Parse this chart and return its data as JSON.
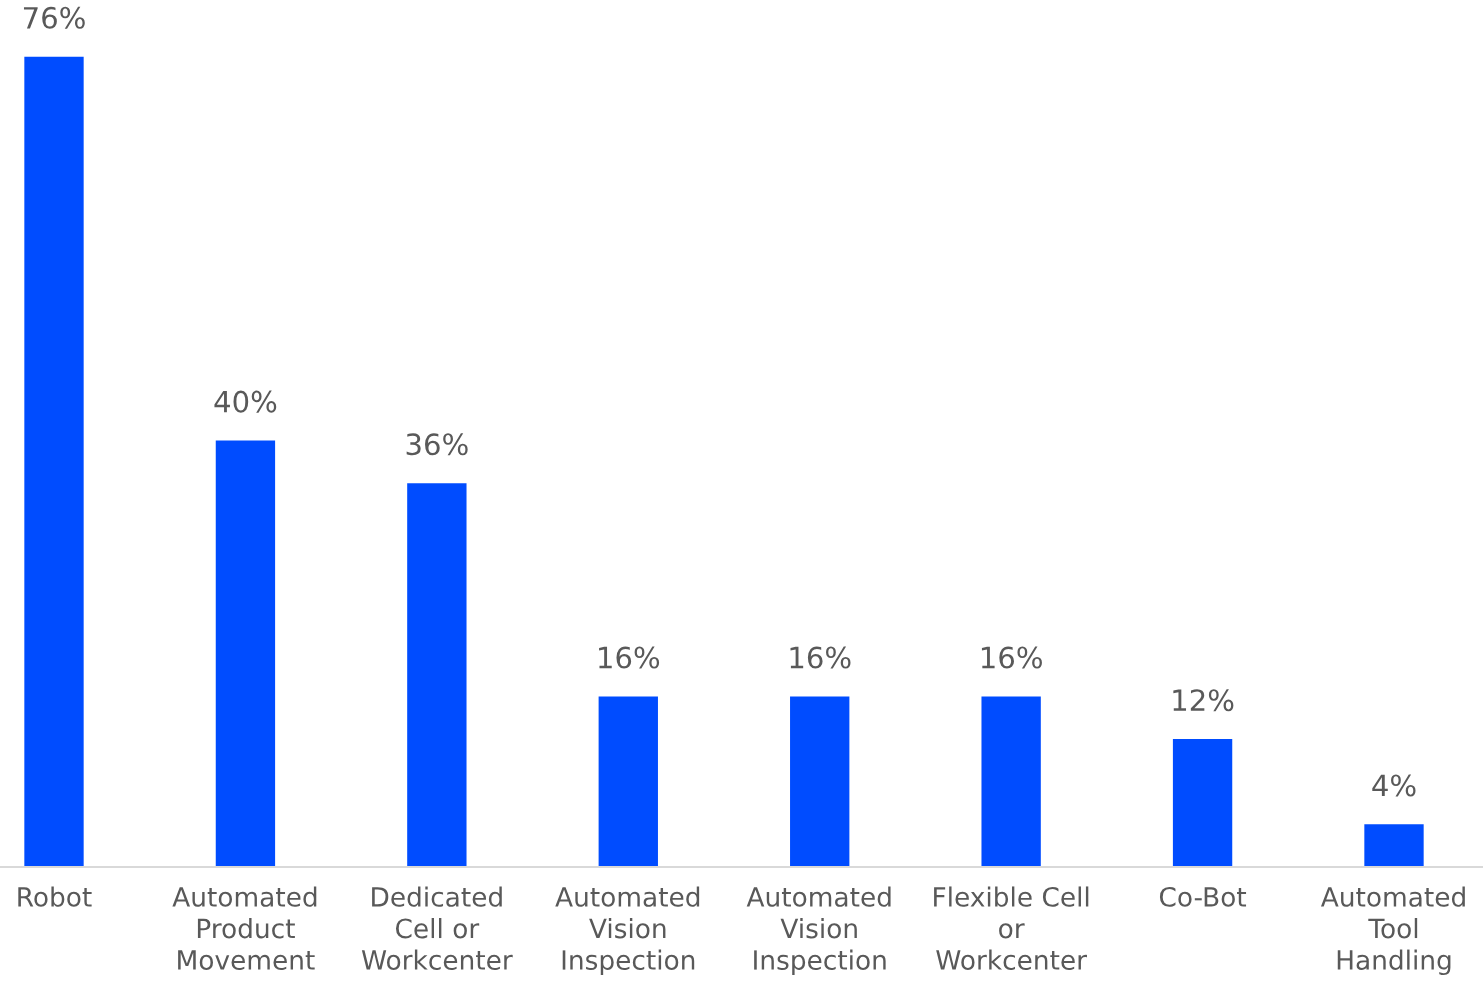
{
  "chart_data": {
    "type": "bar",
    "categories": [
      "Robot",
      "Automated\nProduct\nMovement",
      "Dedicated\nCell or\nWorkcenter",
      "Automated\nVision\nInspection",
      "Automated\nVision\nInspection",
      "Flexible Cell\nor\nWorkcenter",
      "Co-Bot",
      "Automated\nTool\nHandling"
    ],
    "values": [
      76,
      40,
      36,
      16,
      16,
      16,
      12,
      4
    ],
    "value_labels": [
      "76%",
      "40%",
      "36%",
      "16%",
      "16%",
      "16%",
      "12%",
      "4%"
    ],
    "color": "#004cff",
    "grid": false,
    "legend": false
  }
}
